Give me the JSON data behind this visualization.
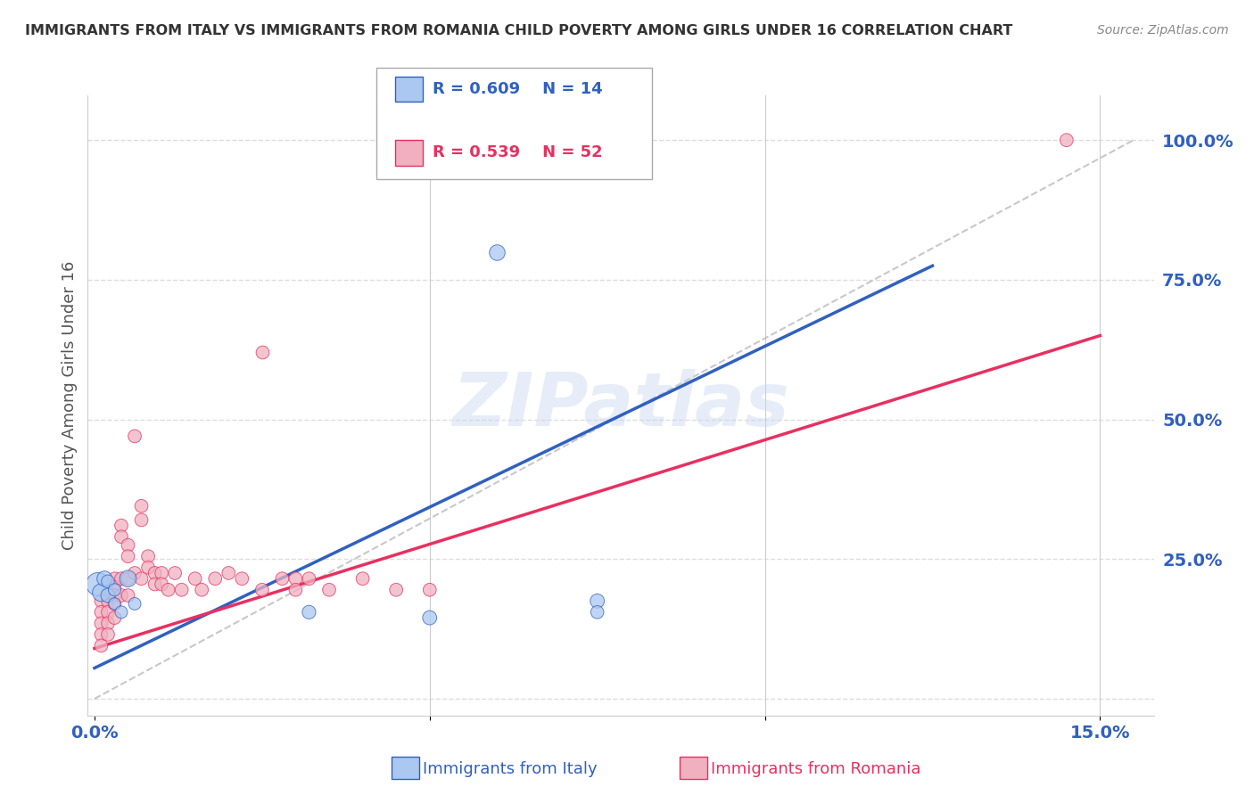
{
  "title": "IMMIGRANTS FROM ITALY VS IMMIGRANTS FROM ROMANIA CHILD POVERTY AMONG GIRLS UNDER 16 CORRELATION CHART",
  "source": "Source: ZipAtlas.com",
  "ylabel_left": "Child Poverty Among Girls Under 16",
  "legend_blue_r": "R = 0.609",
  "legend_blue_n": "N = 14",
  "legend_pink_r": "R = 0.539",
  "legend_pink_n": "N = 52",
  "legend_blue_label": "Immigrants from Italy",
  "legend_pink_label": "Immigrants from Romania",
  "xlim": [
    -0.001,
    0.158
  ],
  "ylim": [
    -0.03,
    1.08
  ],
  "blue_scatter_x": [
    0.0005,
    0.001,
    0.0015,
    0.002,
    0.002,
    0.003,
    0.003,
    0.004,
    0.005,
    0.006,
    0.032,
    0.05,
    0.075,
    0.075
  ],
  "blue_scatter_y": [
    0.205,
    0.19,
    0.215,
    0.185,
    0.21,
    0.195,
    0.17,
    0.155,
    0.215,
    0.17,
    0.155,
    0.145,
    0.175,
    0.155
  ],
  "blue_sizes": [
    350,
    200,
    150,
    130,
    110,
    100,
    90,
    100,
    180,
    100,
    120,
    130,
    130,
    110
  ],
  "blue_outlier_x": [
    0.06
  ],
  "blue_outlier_y": [
    0.8
  ],
  "blue_outlier_size": [
    160
  ],
  "pink_scatter_x": [
    0.001,
    0.001,
    0.001,
    0.001,
    0.001,
    0.002,
    0.002,
    0.002,
    0.002,
    0.002,
    0.003,
    0.003,
    0.003,
    0.003,
    0.003,
    0.004,
    0.004,
    0.004,
    0.004,
    0.005,
    0.005,
    0.005,
    0.005,
    0.006,
    0.006,
    0.007,
    0.007,
    0.007,
    0.008,
    0.008,
    0.009,
    0.009,
    0.01,
    0.01,
    0.011,
    0.012,
    0.013,
    0.015,
    0.016,
    0.018,
    0.02,
    0.022,
    0.025,
    0.028,
    0.03,
    0.03,
    0.032,
    0.035,
    0.04,
    0.045,
    0.05,
    0.145
  ],
  "pink_scatter_y": [
    0.175,
    0.155,
    0.135,
    0.115,
    0.095,
    0.19,
    0.175,
    0.155,
    0.135,
    0.115,
    0.215,
    0.2,
    0.185,
    0.17,
    0.145,
    0.31,
    0.29,
    0.215,
    0.185,
    0.275,
    0.255,
    0.215,
    0.185,
    0.47,
    0.225,
    0.345,
    0.32,
    0.215,
    0.255,
    0.235,
    0.225,
    0.205,
    0.225,
    0.205,
    0.195,
    0.225,
    0.195,
    0.215,
    0.195,
    0.215,
    0.225,
    0.215,
    0.195,
    0.215,
    0.215,
    0.195,
    0.215,
    0.195,
    0.215,
    0.195,
    0.195,
    1.0
  ],
  "pink_sizes": [
    80,
    80,
    80,
    80,
    80,
    80,
    80,
    80,
    80,
    80,
    80,
    80,
    80,
    80,
    80,
    80,
    80,
    80,
    80,
    80,
    80,
    80,
    80,
    80,
    80,
    80,
    80,
    80,
    80,
    80,
    80,
    80,
    80,
    80,
    80,
    80,
    80,
    80,
    80,
    80,
    80,
    80,
    80,
    80,
    80,
    80,
    80,
    80,
    80,
    80,
    80,
    80
  ],
  "pink_outlier_x": [
    0.025
  ],
  "pink_outlier_y": [
    0.62
  ],
  "pink_outlier_size": [
    80
  ],
  "blue_line_x": [
    0.0,
    0.125
  ],
  "blue_line_y": [
    0.055,
    0.775
  ],
  "pink_line_x": [
    0.0,
    0.15
  ],
  "pink_line_y": [
    0.09,
    0.65
  ],
  "ref_line_x": [
    0.0,
    0.155
  ],
  "ref_line_y": [
    0.0,
    1.0
  ],
  "blue_color": "#aac8f0",
  "pink_color": "#f0b0c0",
  "blue_line_color": "#3060c0",
  "pink_line_color": "#e83060",
  "ref_line_color": "#bbbbbb",
  "watermark": "ZIPatlas",
  "background_color": "#ffffff",
  "grid_color": "#dddddd",
  "title_color": "#333333",
  "right_axis_color": "#3060c0",
  "axis_label_color": "#3060c0"
}
